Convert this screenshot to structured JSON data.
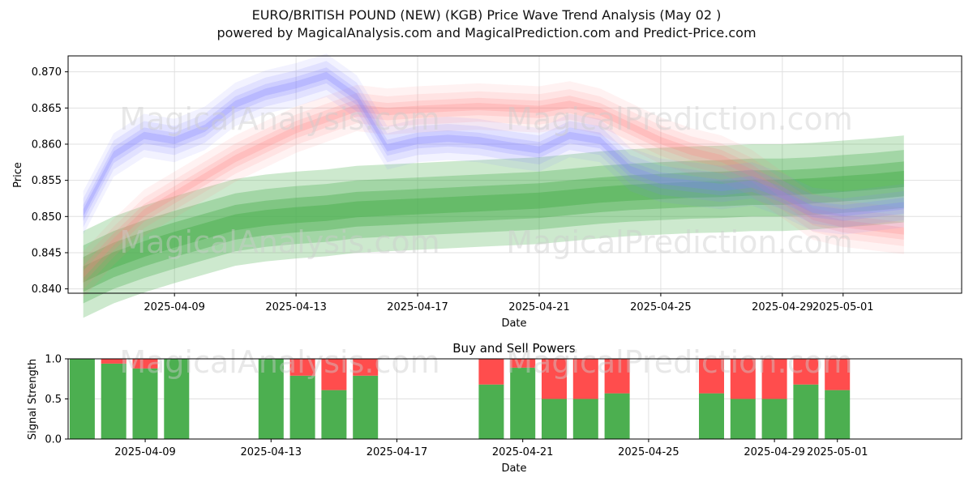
{
  "header": {
    "title": "EURO/BRITISH POUND (NEW) (KGB) Price Wave Trend Analysis (May 02 )",
    "subtitle": "powered by MagicalAnalysis.com and MagicalPrediction.com and Predict-Price.com"
  },
  "watermarks": {
    "left": "MagicalAnalysis.com",
    "right": "MagicalPrediction.com"
  },
  "colors": {
    "buy": "#4caf50",
    "sell": "#ff4d4d",
    "blue_band": "#8080ff",
    "red_band": "#ff8080",
    "green_band": "#4caf50"
  },
  "chart_data": [
    {
      "type": "area",
      "title": "",
      "xlabel": "Date",
      "ylabel": "Price",
      "ylim": [
        0.8394,
        0.8722
      ],
      "xlim": [
        "2025-04-05",
        "2025-05-04"
      ],
      "grid": true,
      "x_ticks": [
        "2025-04-09",
        "2025-04-13",
        "2025-04-17",
        "2025-04-21",
        "2025-04-25",
        "2025-04-29",
        "2025-05-01"
      ],
      "y_ticks": [
        "0.840",
        "0.845",
        "0.850",
        "0.855",
        "0.860",
        "0.865",
        "0.870"
      ],
      "series": [
        {
          "color": "blue",
          "x": [
            "2025-04-06",
            "2025-04-07",
            "2025-04-08",
            "2025-04-09",
            "2025-04-10",
            "2025-04-11",
            "2025-04-12",
            "2025-04-13",
            "2025-04-14",
            "2025-04-15",
            "2025-04-16",
            "2025-04-17",
            "2025-04-18",
            "2025-04-19",
            "2025-04-20",
            "2025-04-21",
            "2025-04-22",
            "2025-04-23",
            "2025-04-24",
            "2025-04-25",
            "2025-04-26",
            "2025-04-27",
            "2025-04-28",
            "2025-04-29",
            "2025-04-30",
            "2025-05-01",
            "2025-05-02",
            "2025-05-03"
          ],
          "values": [
            0.8505,
            0.8585,
            0.8612,
            0.8605,
            0.8622,
            0.8655,
            0.8672,
            0.8682,
            0.8695,
            0.8665,
            0.8595,
            0.8605,
            0.8608,
            0.8605,
            0.8598,
            0.8592,
            0.8612,
            0.8605,
            0.8565,
            0.855,
            0.8545,
            0.854,
            0.8545,
            0.853,
            0.851,
            0.8505,
            0.851,
            0.8515
          ]
        },
        {
          "color": "red",
          "x": [
            "2025-04-06",
            "2025-04-07",
            "2025-04-08",
            "2025-04-09",
            "2025-04-10",
            "2025-04-11",
            "2025-04-12",
            "2025-04-13",
            "2025-04-14",
            "2025-04-15",
            "2025-04-16",
            "2025-04-17",
            "2025-04-18",
            "2025-04-19",
            "2025-04-20",
            "2025-04-21",
            "2025-04-22",
            "2025-04-23",
            "2025-04-24",
            "2025-04-25",
            "2025-04-26",
            "2025-04-27",
            "2025-04-28",
            "2025-04-29",
            "2025-04-30",
            "2025-05-01",
            "2025-05-02",
            "2025-05-03"
          ],
          "values": [
            0.842,
            0.8465,
            0.8505,
            0.853,
            0.8555,
            0.858,
            0.86,
            0.862,
            0.8635,
            0.865,
            0.8645,
            0.8648,
            0.865,
            0.8652,
            0.865,
            0.8648,
            0.8655,
            0.8645,
            0.8625,
            0.8605,
            0.859,
            0.858,
            0.856,
            0.853,
            0.85,
            0.849,
            0.8485,
            0.848
          ]
        },
        {
          "color": "green",
          "x": [
            "2025-04-06",
            "2025-04-07",
            "2025-04-08",
            "2025-04-09",
            "2025-04-10",
            "2025-04-11",
            "2025-04-12",
            "2025-04-13",
            "2025-04-14",
            "2025-04-15",
            "2025-04-16",
            "2025-04-17",
            "2025-04-18",
            "2025-04-19",
            "2025-04-20",
            "2025-04-21",
            "2025-04-22",
            "2025-04-23",
            "2025-04-24",
            "2025-04-25",
            "2025-04-26",
            "2025-04-27",
            "2025-04-28",
            "2025-04-29",
            "2025-04-30",
            "2025-05-01",
            "2025-05-02",
            "2025-05-03"
          ],
          "values": [
            0.842,
            0.844,
            0.8455,
            0.8468,
            0.848,
            0.8492,
            0.8498,
            0.8502,
            0.8505,
            0.851,
            0.8512,
            0.8514,
            0.8516,
            0.8518,
            0.852,
            0.8522,
            0.8526,
            0.853,
            0.8533,
            0.8535,
            0.8537,
            0.8538,
            0.854,
            0.854,
            0.8542,
            0.8545,
            0.8548,
            0.8552
          ]
        }
      ]
    },
    {
      "type": "bar",
      "title": "Buy and Sell Powers",
      "xlabel": "Date",
      "ylabel": "Signal Strength",
      "ylim": [
        0,
        1
      ],
      "xlim": [
        "2025-04-05",
        "2025-05-04"
      ],
      "grid": true,
      "x_ticks": [
        "2025-04-09",
        "2025-04-13",
        "2025-04-17",
        "2025-04-21",
        "2025-04-25",
        "2025-04-29",
        "2025-05-01"
      ],
      "y_ticks": [
        "0.0",
        "0.5",
        "1.0"
      ],
      "categories": [
        "2025-04-07",
        "2025-04-08",
        "2025-04-09",
        "2025-04-10",
        "2025-04-13",
        "2025-04-14",
        "2025-04-15",
        "2025-04-16",
        "2025-04-20",
        "2025-04-21",
        "2025-04-22",
        "2025-04-23",
        "2025-04-24",
        "2025-04-27",
        "2025-04-28",
        "2025-04-29",
        "2025-04-30",
        "2025-05-01"
      ],
      "series": [
        {
          "name": "Buy",
          "values": [
            1.0,
            0.94,
            0.88,
            1.0,
            1.0,
            0.79,
            0.61,
            0.79,
            0.68,
            0.89,
            0.5,
            0.5,
            0.57,
            0.57,
            0.5,
            0.5,
            0.68,
            0.61
          ]
        },
        {
          "name": "Sell",
          "values": [
            0.0,
            0.06,
            0.12,
            0.0,
            0.0,
            0.21,
            0.39,
            0.21,
            0.32,
            0.11,
            0.5,
            0.5,
            0.43,
            0.43,
            0.5,
            0.5,
            0.32,
            0.39
          ]
        }
      ]
    }
  ]
}
